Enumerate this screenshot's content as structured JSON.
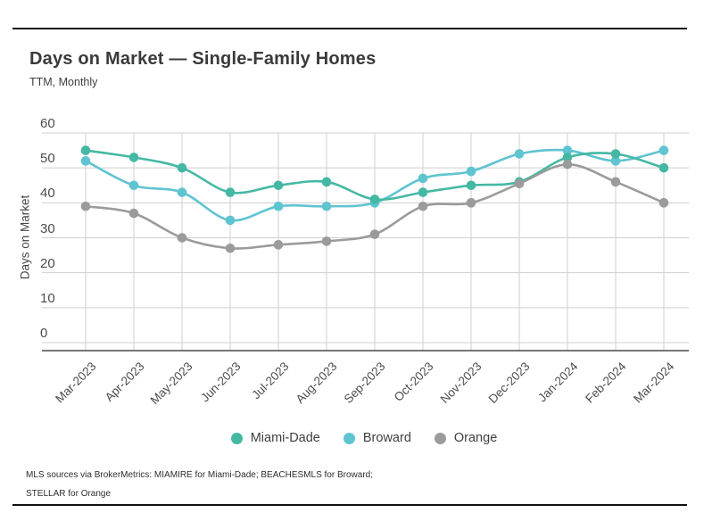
{
  "header": {
    "title": "Days on Market — Single-Family Homes",
    "subtitle": "TTM, Monthly"
  },
  "chart_data": {
    "type": "line",
    "title": "Days on Market — Single-Family Homes",
    "subtitle": "TTM, Monthly",
    "categories": [
      "Mar-2023",
      "Apr-2023",
      "May-2023",
      "Jun-2023",
      "Jul-2023",
      "Aug-2023",
      "Sep-2023",
      "Oct-2023",
      "Nov-2023",
      "Dec-2023",
      "Jan-2024",
      "Feb-2024",
      "Mar-2024"
    ],
    "series": [
      {
        "name": "Miami-Dade",
        "color": "#45b8a4",
        "values": [
          55,
          53,
          50,
          43,
          45,
          46,
          41,
          43,
          45,
          46,
          53,
          54,
          50
        ]
      },
      {
        "name": "Broward",
        "color": "#5ec4d0",
        "values": [
          52,
          45,
          43,
          35,
          39,
          39,
          40,
          47,
          49,
          54,
          55,
          52,
          55
        ]
      },
      {
        "name": "Orange",
        "color": "#9b9b9b",
        "values": [
          39,
          37,
          30,
          27,
          28,
          29,
          31,
          39,
          40,
          45.5,
          51,
          46,
          40
        ]
      }
    ],
    "xlabel": "",
    "ylabel": "Days on Market",
    "ylim": [
      0,
      60
    ],
    "ytick_step": 10,
    "grid": true,
    "legend_position": "bottom",
    "colors": {
      "grid": "#cfcfcf",
      "axis": "#4a4a4a",
      "tick_text": "#4c4c4c"
    }
  },
  "footer": {
    "line1": "MLS sources via BrokerMetrics: MIAMIRE for Miami-Dade; BEACHESMLS for Broward;",
    "line2": "STELLAR for Orange"
  }
}
